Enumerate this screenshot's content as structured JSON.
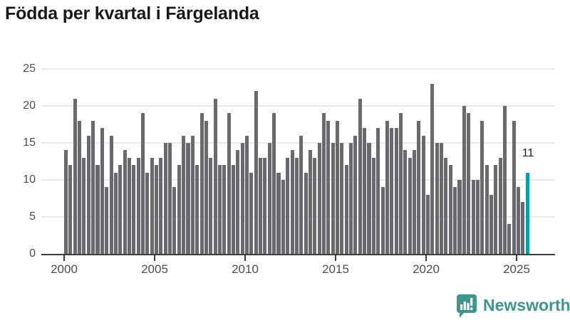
{
  "title": "Födda per kvartal i Färgelanda",
  "chart_data": {
    "type": "bar",
    "title": "Födda per kvartal i Färgelanda",
    "start_period": "2000-Q1",
    "end_period": "2025-Q3",
    "frequency": "quarterly",
    "values": [
      14,
      12,
      21,
      18,
      13,
      16,
      18,
      12,
      17,
      9,
      16,
      11,
      12,
      14,
      13,
      12,
      13,
      19,
      11,
      13,
      12,
      13,
      15,
      15,
      9,
      12,
      16,
      15,
      16,
      12,
      19,
      18,
      13,
      21,
      12,
      12,
      19,
      12,
      14,
      15,
      16,
      11,
      22,
      13,
      13,
      15,
      19,
      11,
      10,
      13,
      14,
      13,
      16,
      11,
      14,
      13,
      15,
      19,
      18,
      15,
      18,
      15,
      12,
      15,
      16,
      21,
      17,
      15,
      13,
      17,
      9,
      18,
      17,
      17,
      19,
      14,
      13,
      14,
      18,
      16,
      8,
      23,
      15,
      15,
      13,
      12,
      9,
      10,
      20,
      19,
      10,
      10,
      18,
      12,
      8,
      12,
      13,
      20,
      4,
      18,
      9,
      7,
      11
    ],
    "yticks": [
      0,
      5,
      10,
      15,
      20,
      25
    ],
    "ylim": [
      0,
      25
    ],
    "xticks": [
      2000,
      2005,
      2010,
      2015,
      2020,
      2025
    ],
    "grid": "horizontal",
    "legend": "none",
    "bar_color": "#6a6970",
    "highlight": {
      "period": "2025-Q3",
      "index": 102,
      "value": 11,
      "label": "11",
      "color": "#00a1a6"
    }
  },
  "logo": {
    "text": "Newsworthy",
    "color": "#3e968e",
    "icon": "newsworthy-speech-bubble-bar-chart-icon"
  }
}
